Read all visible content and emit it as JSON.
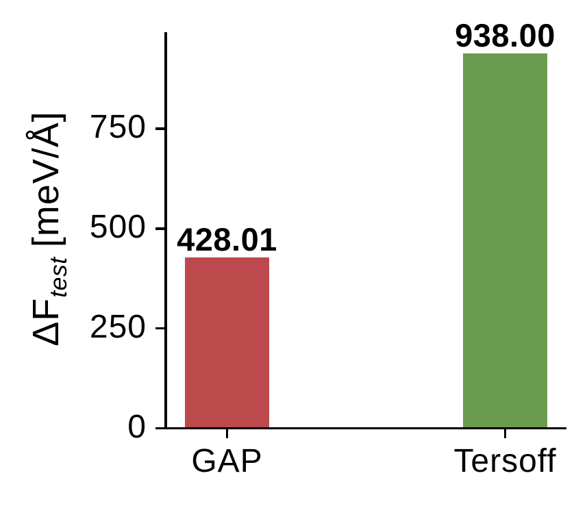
{
  "chart_data": {
    "type": "bar",
    "categories": [
      "GAP",
      "Tersoff"
    ],
    "values": [
      428.01,
      938.0
    ],
    "value_labels": [
      "428.01",
      "938.00"
    ],
    "bar_colors": [
      "#bc4a4c",
      "#6a9b4f"
    ],
    "title": "",
    "xlabel": "",
    "ylabel": "ΔF_test [meV/Å]",
    "ylabel_parts": {
      "prefix": "ΔF",
      "subscript": "test",
      "unit": "[meV/Å]"
    },
    "yticks": [
      0,
      250,
      500,
      750
    ],
    "ytick_labels": [
      "0",
      "250",
      "500",
      "750"
    ],
    "ylim": [
      0,
      992
    ],
    "grid": false,
    "legend": "none",
    "axis_color": "#000000",
    "text_color": "#000000",
    "background": "#ffffff"
  }
}
